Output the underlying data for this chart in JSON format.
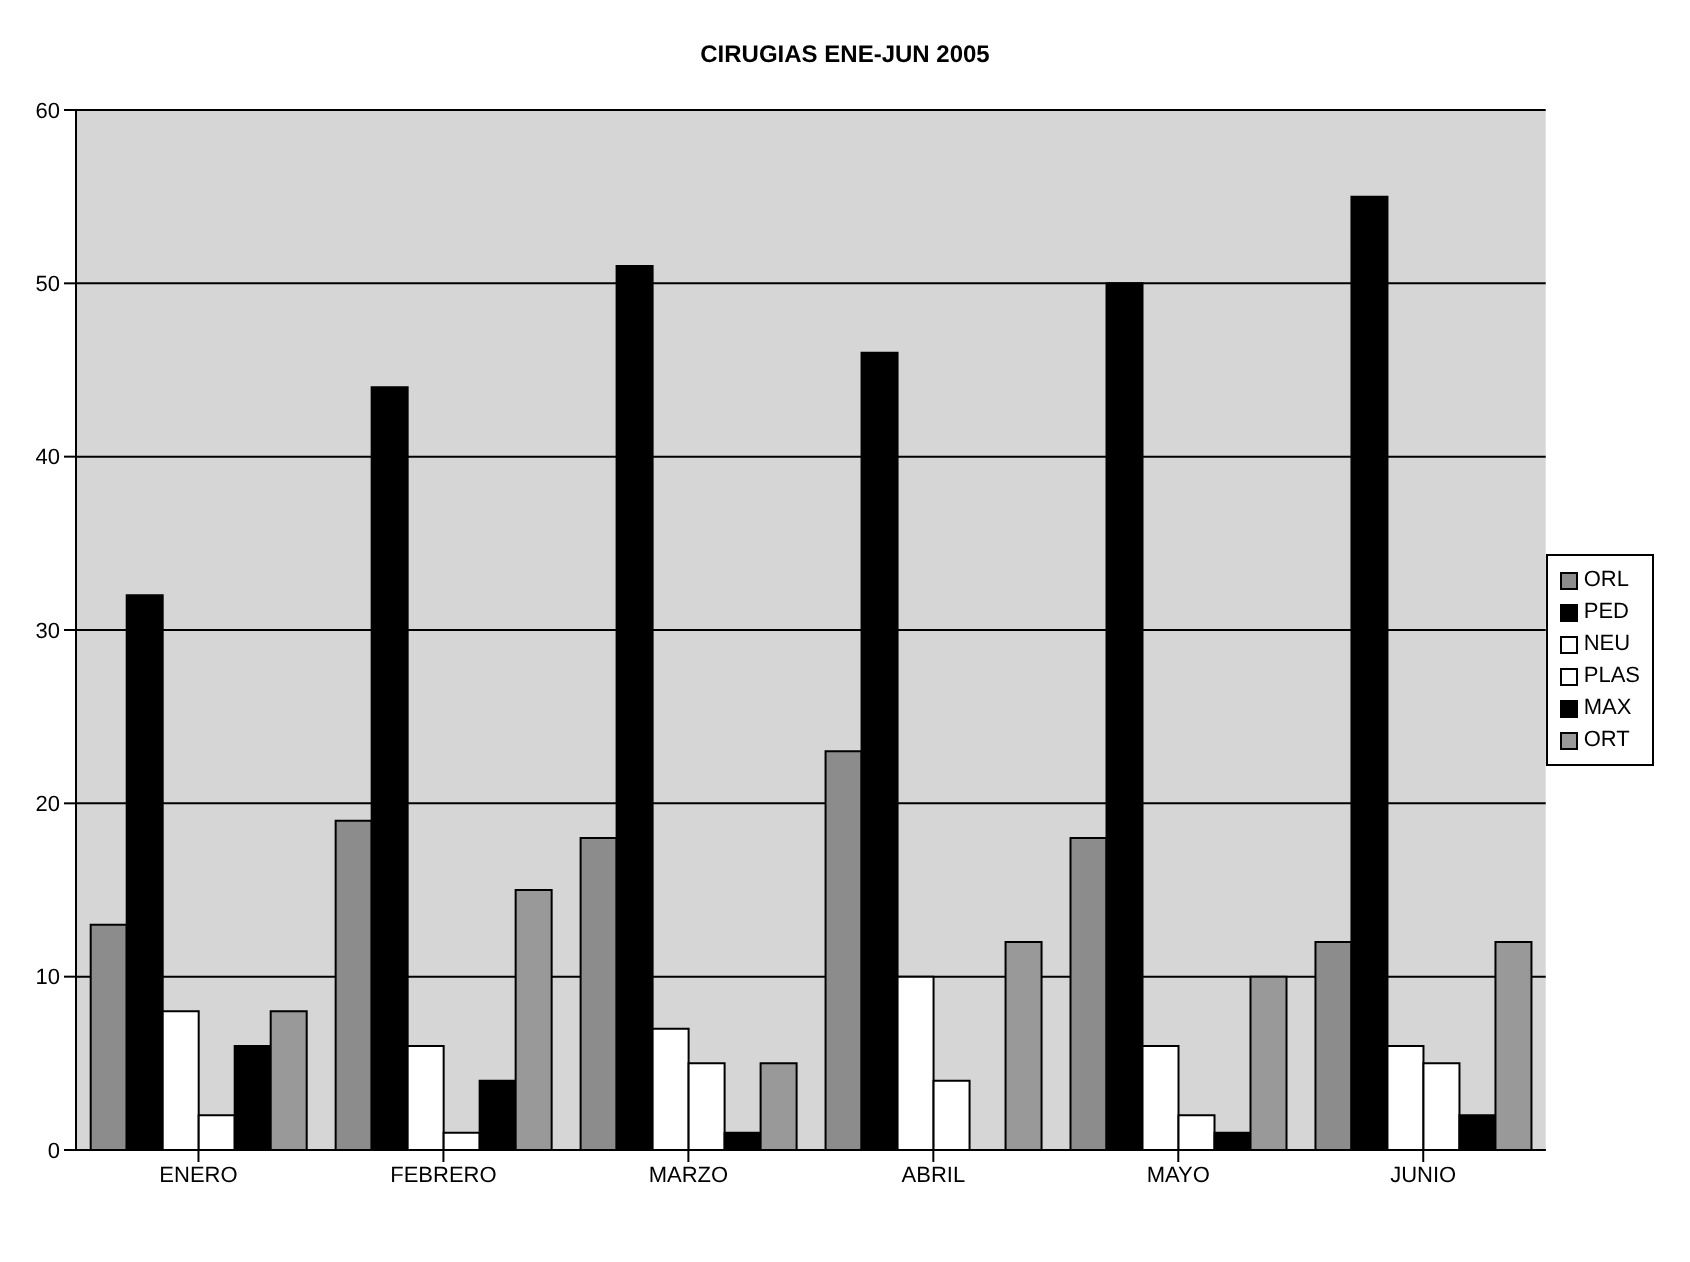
{
  "chart_data": {
    "type": "bar",
    "title": "CIRUGIAS ENE-JUN 2005",
    "categories": [
      "ENERO",
      "FEBRERO",
      "MARZO",
      "ABRIL",
      "MAYO",
      "JUNIO"
    ],
    "series": [
      {
        "name": "ORL",
        "color": "#8c8c8c",
        "values": [
          13,
          19,
          18,
          23,
          18,
          12
        ]
      },
      {
        "name": "PED",
        "color": "#000000",
        "values": [
          32,
          44,
          51,
          46,
          50,
          55
        ]
      },
      {
        "name": "NEU",
        "color": "#ffffff",
        "values": [
          8,
          6,
          7,
          10,
          6,
          6
        ]
      },
      {
        "name": "PLAS",
        "color": "#ffffff",
        "values": [
          2,
          1,
          5,
          4,
          2,
          5
        ]
      },
      {
        "name": "MAX",
        "color": "#000000",
        "values": [
          6,
          4,
          1,
          0,
          1,
          2
        ]
      },
      {
        "name": "ORT",
        "color": "#999999",
        "values": [
          8,
          15,
          5,
          12,
          10,
          12
        ]
      }
    ],
    "ylim": [
      0,
      60
    ],
    "yticks": [
      0,
      10,
      20,
      30,
      40,
      50,
      60
    ],
    "grid": "y",
    "legend": "right"
  }
}
